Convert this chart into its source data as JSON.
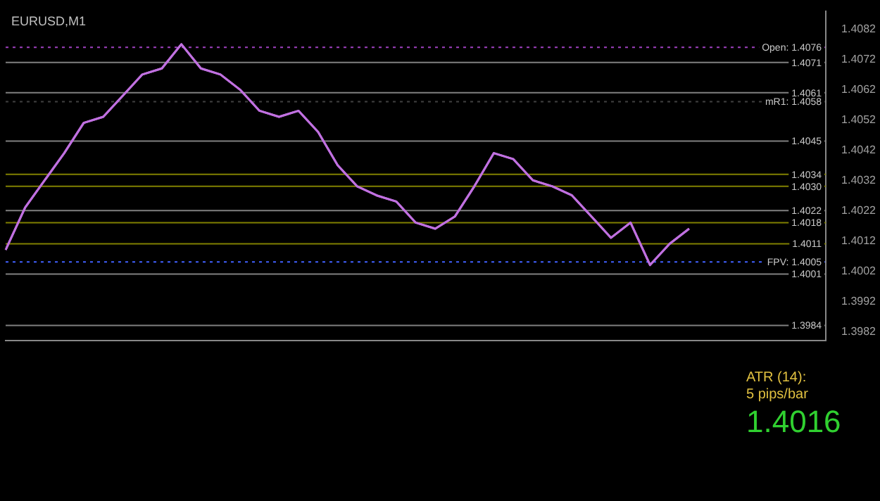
{
  "chart_data": {
    "type": "line",
    "title": "EURUSD,M1",
    "categories": [
      null,
      null,
      null,
      null,
      null,
      null,
      null,
      null,
      null,
      null,
      null,
      null,
      null,
      null,
      null,
      null,
      null,
      null,
      null,
      null,
      null,
      null,
      null,
      null,
      null,
      null,
      null,
      null,
      null,
      null,
      null,
      null,
      null,
      null,
      null,
      null
    ],
    "series": [
      {
        "color": "#c070e0",
        "values": [
          1.4009,
          1.4023,
          1.4032,
          1.4041,
          1.4051,
          1.4053,
          1.406,
          1.4067,
          1.4069,
          1.4077,
          1.4069,
          1.4067,
          1.4062,
          1.4055,
          1.4053,
          1.4055,
          1.4048,
          1.4037,
          1.403,
          1.4027,
          1.4025,
          1.4018,
          1.4016,
          1.402,
          1.403,
          1.4041,
          1.4039,
          1.4032,
          1.403,
          1.4027,
          1.402,
          1.4013,
          1.4018,
          1.4004,
          1.4011,
          1.4016
        ]
      }
    ],
    "ylim": [
      1.3979,
      1.4088
    ],
    "yticks": [
      1.3982,
      1.3992,
      1.4002,
      1.4012,
      1.4022,
      1.4032,
      1.4042,
      1.4052,
      1.4062,
      1.4072,
      1.4082
    ],
    "ref_lines": [
      {
        "axis": "y",
        "value": 1.4076,
        "label": "Open: 1.4076",
        "color": "#a040c0",
        "line_style": "dotted"
      },
      {
        "axis": "y",
        "value": 1.4071,
        "label": "1.4071",
        "color": "#808080",
        "line_style": "solid"
      },
      {
        "axis": "y",
        "value": 1.4061,
        "label": "1.4061",
        "color": "#808080",
        "line_style": "solid"
      },
      {
        "axis": "y",
        "value": 1.4058,
        "label": "mR1: 1.4058",
        "color": "#404040",
        "line_style": "dotted"
      },
      {
        "axis": "y",
        "value": 1.4045,
        "label": "1.4045",
        "color": "#808080",
        "line_style": "solid"
      },
      {
        "axis": "y",
        "value": 1.4034,
        "label": "1.4034",
        "color": "#808000",
        "line_style": "solid"
      },
      {
        "axis": "y",
        "value": 1.403,
        "label": "1.4030",
        "color": "#808000",
        "line_style": "solid"
      },
      {
        "axis": "y",
        "value": 1.4022,
        "label": "1.4022",
        "color": "#808080",
        "line_style": "solid"
      },
      {
        "axis": "y",
        "value": 1.4018,
        "label": "1.4018",
        "color": "#808000",
        "line_style": "solid"
      },
      {
        "axis": "y",
        "value": 1.4011,
        "label": "1.4011",
        "color": "#808000",
        "line_style": "solid"
      },
      {
        "axis": "y",
        "value": 1.4005,
        "label": "FPV: 1.4005",
        "color": "#4060ff",
        "line_style": "dotted"
      },
      {
        "axis": "y",
        "value": 1.4001,
        "label": "1.4001",
        "color": "#808080",
        "line_style": "solid"
      },
      {
        "axis": "y",
        "value": 1.3984,
        "label": "1.3984",
        "color": "#808080",
        "line_style": "solid"
      }
    ],
    "annotations": [
      "ATR (14):",
      "5 pips/bar",
      "1.4016"
    ],
    "grid": false,
    "legend": false
  }
}
